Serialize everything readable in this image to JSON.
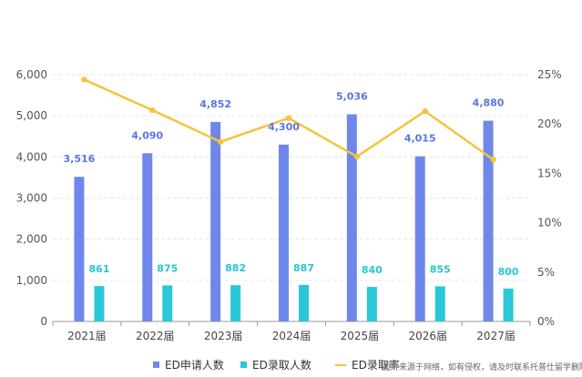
{
  "chart_data": {
    "type": "bar",
    "categories": [
      "2021届",
      "2022届",
      "2023届",
      "2024届",
      "2025届",
      "2026届",
      "2027届"
    ],
    "series": [
      {
        "name": "ED申请人数",
        "type": "bar",
        "axis": "left",
        "color": "#6f87ea",
        "values": [
          3516,
          4090,
          4852,
          4300,
          5036,
          4015,
          4880
        ],
        "labels": [
          "3,516",
          "4,090",
          "4,852",
          "4,300",
          "5,036",
          "4,015",
          "4,880"
        ]
      },
      {
        "name": "ED录取人数",
        "type": "bar",
        "axis": "left",
        "color": "#2ac8d6",
        "values": [
          861,
          875,
          882,
          887,
          840,
          855,
          800
        ],
        "labels": [
          "861",
          "875",
          "882",
          "887",
          "840",
          "855",
          "800"
        ]
      },
      {
        "name": "ED录取率",
        "type": "line",
        "axis": "right",
        "color": "#f5c33b",
        "values": [
          24.5,
          21.4,
          18.2,
          20.6,
          16.7,
          21.3,
          16.4
        ]
      }
    ],
    "y_left": {
      "min": 0,
      "max": 6000,
      "ticks": [
        "0",
        "1,000",
        "2,000",
        "3,000",
        "4,000",
        "5,000",
        "6,000"
      ]
    },
    "y_right": {
      "min": 0,
      "max": 25,
      "ticks": [
        "0%",
        "5%",
        "10%",
        "15%",
        "20%",
        "25%"
      ]
    },
    "grid": true,
    "legend_position": "bottom"
  },
  "watermark": "图片来源于网络，如有侵权，请及时联系托普仕留学删除"
}
